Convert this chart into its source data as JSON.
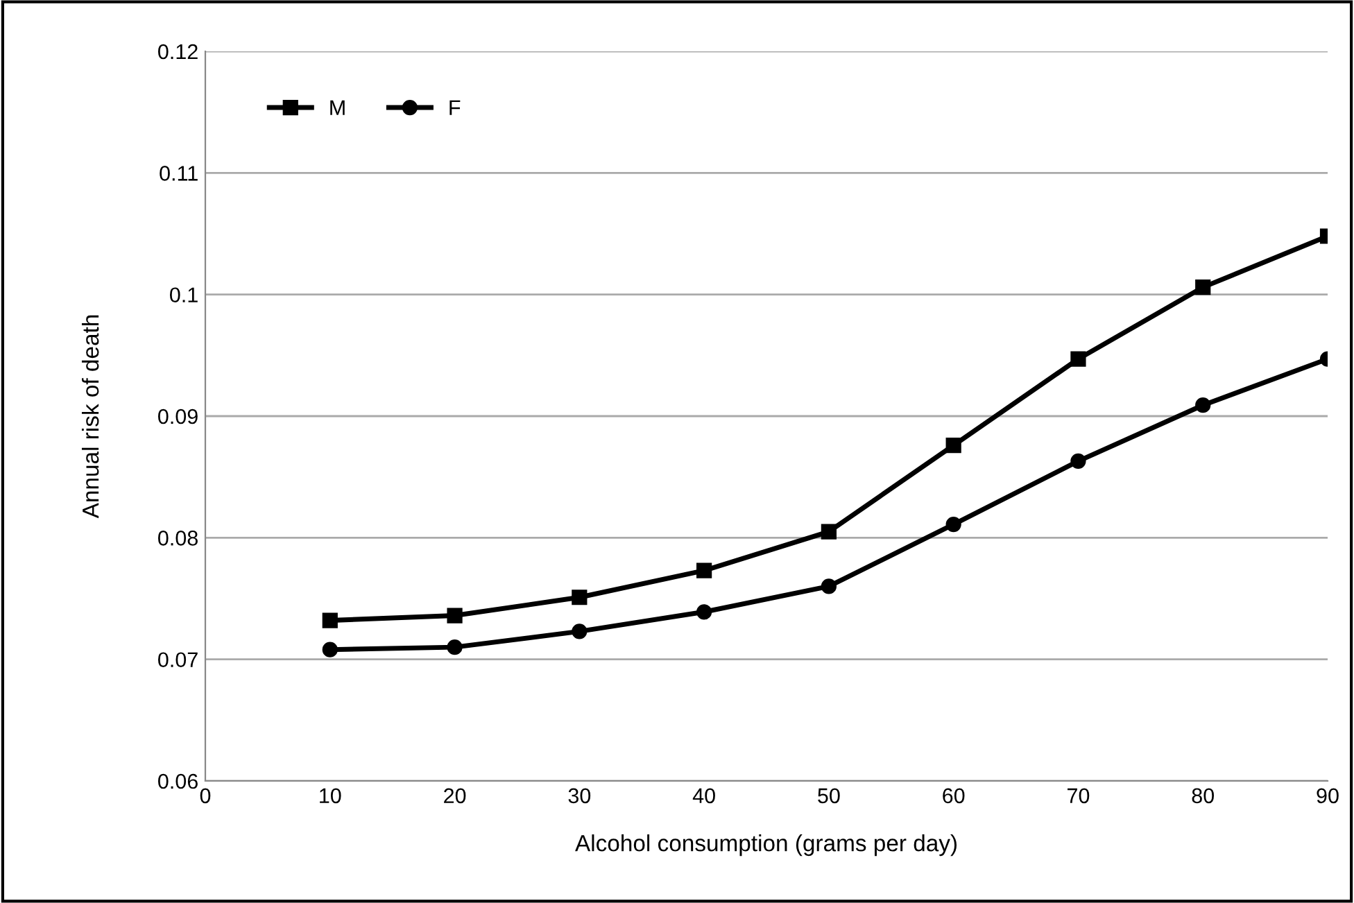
{
  "chart_data": {
    "type": "line",
    "xlabel": "Alcohol consumption (grams per day)",
    "ylabel": "Annual risk of death",
    "x": [
      10,
      20,
      30,
      40,
      50,
      60,
      70,
      80,
      90
    ],
    "series": [
      {
        "name": "M",
        "color": "#000000",
        "marker": "square",
        "values": [
          0.0732,
          0.0736,
          0.0751,
          0.0773,
          0.0805,
          0.0876,
          0.0947,
          0.1006,
          0.1048
        ]
      },
      {
        "name": "F",
        "color": "#000000",
        "marker": "circle",
        "values": [
          0.0708,
          0.071,
          0.0723,
          0.0739,
          0.076,
          0.0811,
          0.0863,
          0.0909,
          0.0947
        ]
      }
    ],
    "xlim": [
      0,
      90
    ],
    "xticks": [
      0,
      10,
      20,
      30,
      40,
      50,
      60,
      70,
      80,
      90
    ],
    "ylim": [
      0.06,
      0.12
    ],
    "yticks": [
      0.06,
      0.07,
      0.08,
      0.09,
      0.1,
      0.11,
      0.12
    ],
    "grid": "y",
    "legend": "top left",
    "line_style": "solid"
  }
}
